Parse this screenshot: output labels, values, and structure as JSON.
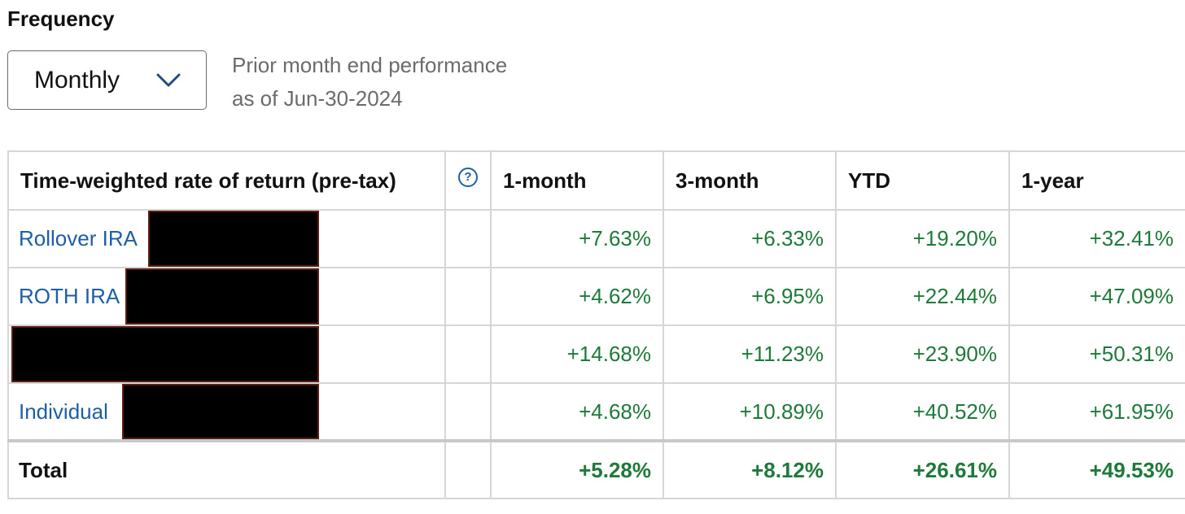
{
  "frequency": {
    "label": "Frequency",
    "selected": "Monthly",
    "note_line1": "Prior month end performance",
    "note_line2": "as of Jun-30-2024"
  },
  "table": {
    "headers": {
      "account": "Time-weighted rate of return (pre-tax)",
      "help": "?",
      "m1": "1-month",
      "m3": "3-month",
      "ytd": "YTD",
      "y1": "1-year"
    },
    "rows": [
      {
        "name": "Rollover IRA",
        "m1": "+7.63%",
        "m3": "+6.33%",
        "ytd": "+19.20%",
        "y1": "+32.41%"
      },
      {
        "name": "ROTH IRA",
        "m1": "+4.62%",
        "m3": "+6.95%",
        "ytd": "+22.44%",
        "y1": "+47.09%"
      },
      {
        "name": "",
        "m1": "+14.68%",
        "m3": "+11.23%",
        "ytd": "+23.90%",
        "y1": "+50.31%"
      },
      {
        "name": "Individual",
        "m1": "+4.68%",
        "m3": "+10.89%",
        "ytd": "+40.52%",
        "y1": "+61.95%"
      }
    ],
    "total": {
      "label": "Total",
      "m1": "+5.28%",
      "m3": "+8.12%",
      "ytd": "+26.61%",
      "y1": "+49.53%"
    }
  },
  "colors": {
    "link": "#1d5fa6",
    "positive": "#1e7a3a",
    "border": "#d6d6d6"
  }
}
